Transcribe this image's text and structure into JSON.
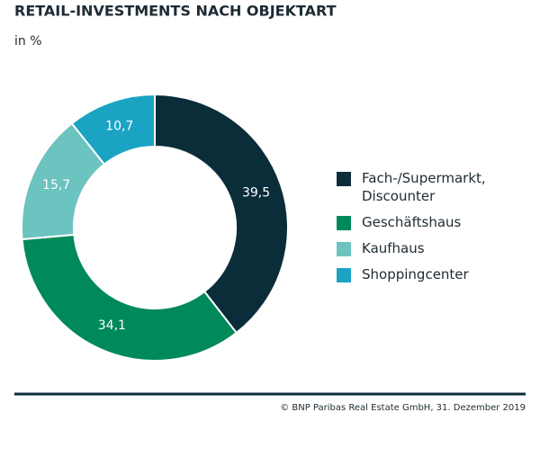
{
  "chart_data": {
    "type": "donut",
    "title": "RETAIL-INVESTMENTS NACH OBJEKTART",
    "subtitle": "in %",
    "categories": [
      "Fach-/Supermarkt, Discounter",
      "Geschäftshaus",
      "Kaufhaus",
      "Shoppingcenter"
    ],
    "values": [
      39.5,
      34.1,
      15.7,
      10.7
    ],
    "value_labels": [
      "39,5",
      "34,1",
      "15,7",
      "10,7"
    ],
    "colors": [
      "#0b2d3a",
      "#00895a",
      "#6cc3c0",
      "#1aa3c3"
    ],
    "source": "© BNP Paribas Real Estate GmbH, 31. Dezember 2019"
  }
}
